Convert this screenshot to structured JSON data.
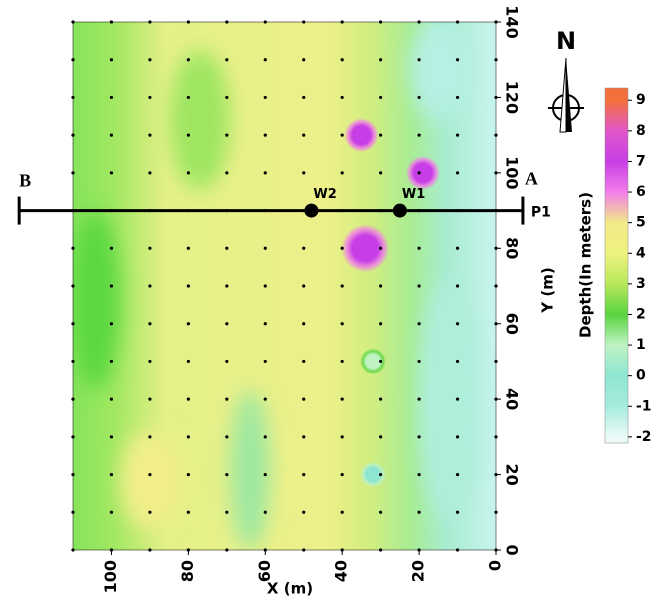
{
  "chart_data": {
    "type": "contour",
    "x_label": "X (m)",
    "y_label": "Y (m)",
    "colorbar_label": "Depth(In meters)",
    "xlim": [
      110,
      0
    ],
    "xticks": [
      100,
      80,
      60,
      40,
      20,
      0
    ],
    "ylim": [
      0,
      140
    ],
    "yticks": [
      0,
      20,
      40,
      60,
      80,
      100,
      120,
      140
    ],
    "clim": [
      -2.2,
      9.4
    ],
    "cticks": [
      -2,
      -1,
      0,
      1,
      2,
      3,
      4,
      5,
      6,
      7,
      8,
      9
    ],
    "colormap": [
      {
        "value": -2,
        "color": "#eafaf8"
      },
      {
        "value": -1,
        "color": "#a6ecdc"
      },
      {
        "value": 0,
        "color": "#8ee6d2"
      },
      {
        "value": 1,
        "color": "#bff3c4"
      },
      {
        "value": 2,
        "color": "#58d43e"
      },
      {
        "value": 3,
        "color": "#b8e85c"
      },
      {
        "value": 4,
        "color": "#eef27e"
      },
      {
        "value": 5,
        "color": "#f2ea88"
      },
      {
        "value": 6,
        "color": "#f27ee8"
      },
      {
        "value": 7,
        "color": "#c83ee6"
      },
      {
        "value": 8,
        "color": "#e058c8"
      },
      {
        "value": 9,
        "color": "#f4703a"
      }
    ],
    "grid_x": [
      0,
      10,
      20,
      30,
      40,
      50,
      60,
      70,
      80,
      90,
      100,
      110
    ],
    "grid_y": [
      0,
      10,
      20,
      30,
      40,
      50,
      60,
      70,
      80,
      90,
      100,
      110,
      120,
      130,
      140
    ],
    "anomalies": [
      {
        "x": 35,
        "y": 110,
        "value": 7
      },
      {
        "x": 19,
        "y": 100,
        "value": 7
      },
      {
        "x": 34,
        "y": 80,
        "value": 7
      },
      {
        "x": 32,
        "y": 50,
        "value": 1
      },
      {
        "x": 32,
        "y": 20,
        "value": 0
      }
    ],
    "profile": {
      "name": "P1",
      "y": 90,
      "x_extent": [
        124,
        -7
      ],
      "start_label": "B",
      "end_label": "A"
    },
    "wells": [
      {
        "name": "W2",
        "x": 48,
        "y": 90
      },
      {
        "name": "W1",
        "x": 25,
        "y": 90
      }
    ],
    "north_label": "N"
  }
}
